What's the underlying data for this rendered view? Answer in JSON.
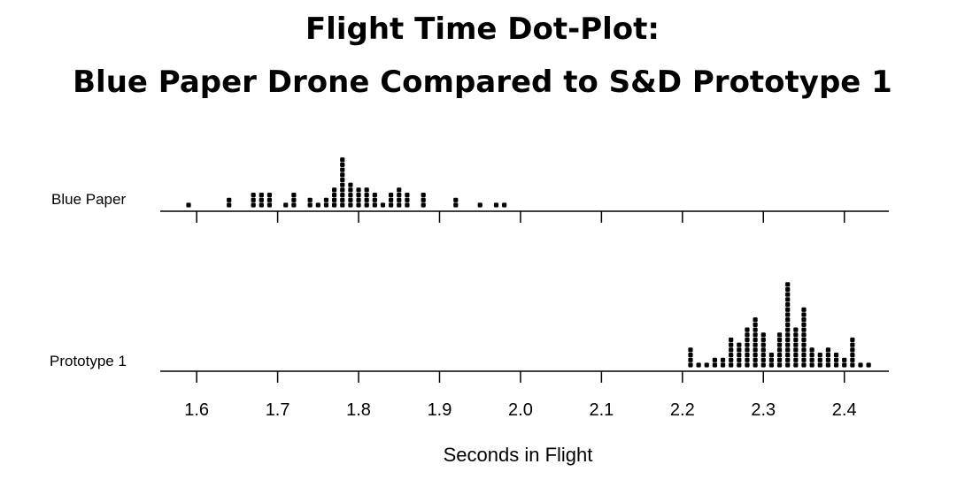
{
  "chart_data": {
    "type": "dot-plot",
    "title_line1": "Flight Time Dot-Plot:",
    "title_line2": "Blue Paper Drone Compared to S&D Prototype 1",
    "xlabel": "Seconds in Flight",
    "xlim": [
      1.555,
      2.455
    ],
    "xticks": [
      "1.6",
      "1.7",
      "1.8",
      "1.9",
      "2.0",
      "2.1",
      "2.2",
      "2.3",
      "2.4"
    ],
    "grid": false,
    "series": [
      {
        "name": "Blue Paper",
        "counts": [
          [
            1.59,
            1
          ],
          [
            1.64,
            2
          ],
          [
            1.67,
            3
          ],
          [
            1.68,
            3
          ],
          [
            1.69,
            3
          ],
          [
            1.71,
            1
          ],
          [
            1.72,
            3
          ],
          [
            1.74,
            2
          ],
          [
            1.75,
            1
          ],
          [
            1.76,
            2
          ],
          [
            1.77,
            4
          ],
          [
            1.78,
            10
          ],
          [
            1.79,
            5
          ],
          [
            1.8,
            4
          ],
          [
            1.81,
            4
          ],
          [
            1.82,
            3
          ],
          [
            1.83,
            1
          ],
          [
            1.84,
            3
          ],
          [
            1.85,
            4
          ],
          [
            1.86,
            3
          ],
          [
            1.88,
            3
          ],
          [
            1.92,
            2
          ],
          [
            1.95,
            1
          ],
          [
            1.97,
            1
          ],
          [
            1.98,
            1
          ]
        ]
      },
      {
        "name": "Prototype 1",
        "counts": [
          [
            2.21,
            4
          ],
          [
            2.22,
            1
          ],
          [
            2.23,
            1
          ],
          [
            2.24,
            2
          ],
          [
            2.25,
            2
          ],
          [
            2.26,
            6
          ],
          [
            2.27,
            5
          ],
          [
            2.28,
            8
          ],
          [
            2.29,
            10
          ],
          [
            2.3,
            7
          ],
          [
            2.31,
            3
          ],
          [
            2.32,
            7
          ],
          [
            2.33,
            17
          ],
          [
            2.34,
            8
          ],
          [
            2.35,
            12
          ],
          [
            2.36,
            4
          ],
          [
            2.37,
            3
          ],
          [
            2.38,
            4
          ],
          [
            2.39,
            3
          ],
          [
            2.4,
            2
          ],
          [
            2.41,
            6
          ],
          [
            2.42,
            1
          ],
          [
            2.43,
            1
          ]
        ]
      }
    ]
  }
}
